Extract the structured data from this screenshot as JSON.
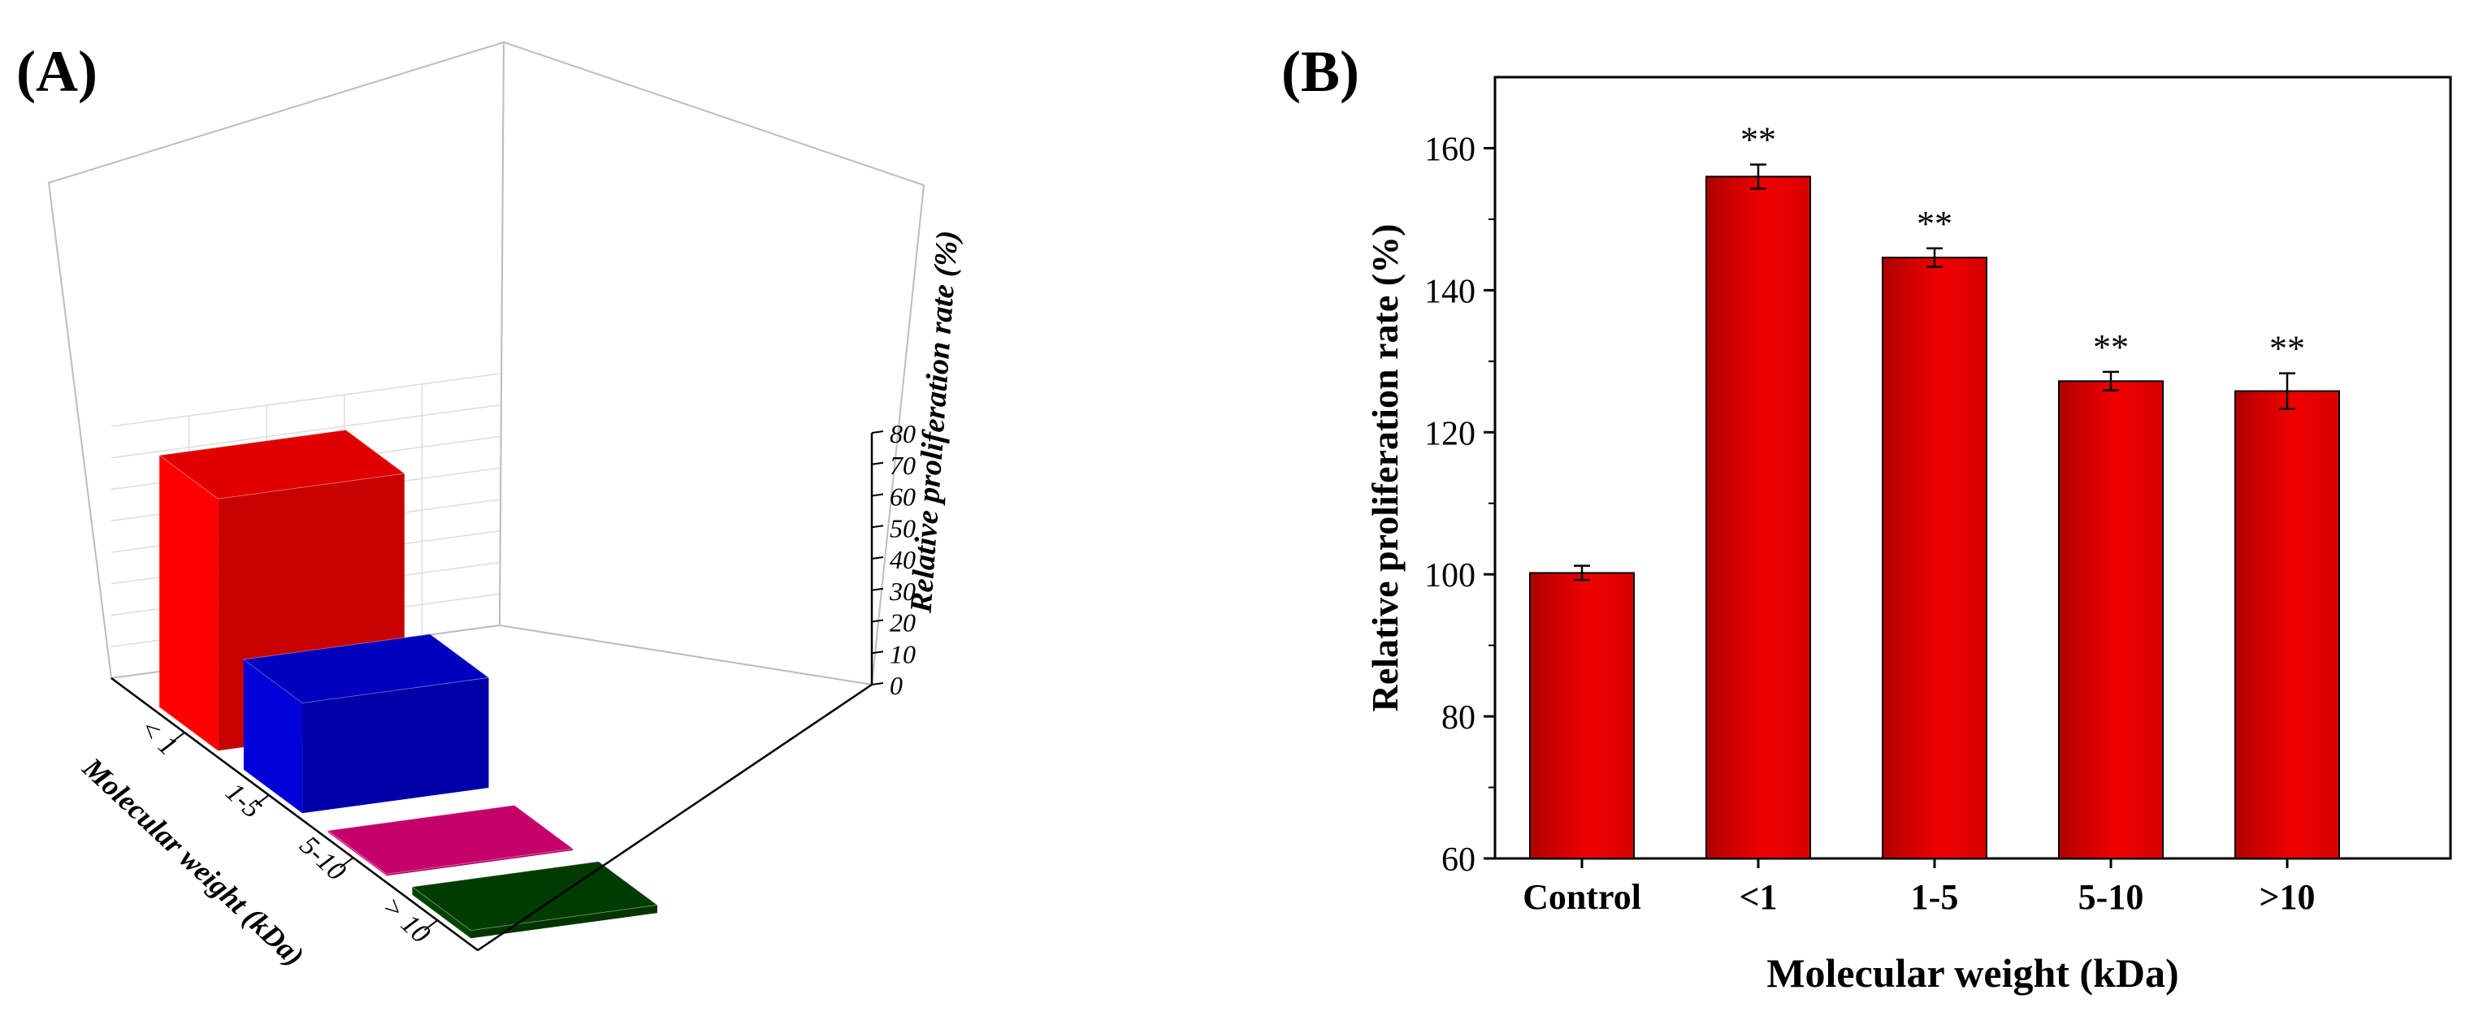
{
  "panels": {
    "a": {
      "label": "(A)"
    },
    "b": {
      "label": "(B)"
    }
  },
  "chart_data": [
    {
      "panel": "A",
      "type": "bar",
      "projection": "3d",
      "title": "",
      "xlabel": "Molecular weight (kDa)",
      "zlabel": "Relative proliferation rate (%)",
      "categories": [
        "< 1",
        "1-5",
        "5-10",
        "> 10"
      ],
      "values": [
        80,
        35,
        0.5,
        2.5
      ],
      "zlim": [
        0,
        80
      ],
      "zticks": [
        "0",
        "10",
        "20",
        "30",
        "40",
        "50",
        "60",
        "70",
        "80"
      ],
      "colors": [
        "#ff0000",
        "#0000d8",
        "#e0007a",
        "#004400"
      ],
      "grid": true
    },
    {
      "panel": "B",
      "type": "bar",
      "title": "",
      "xlabel": "Molecular weight (kDa)",
      "ylabel": "Relative proliferation rate (%)",
      "categories": [
        "Control",
        "<1",
        "1-5",
        "5-10",
        ">10"
      ],
      "values": [
        100.2,
        156.0,
        144.6,
        127.2,
        125.8
      ],
      "errors": [
        1.0,
        1.7,
        1.3,
        1.3,
        2.5
      ],
      "annotations": [
        "",
        "**",
        "**",
        "**",
        "**"
      ],
      "ylim": [
        60,
        170
      ],
      "yticks": [
        "60",
        "80",
        "100",
        "120",
        "140",
        "160"
      ],
      "color": "#e10000",
      "grid": false
    }
  ]
}
